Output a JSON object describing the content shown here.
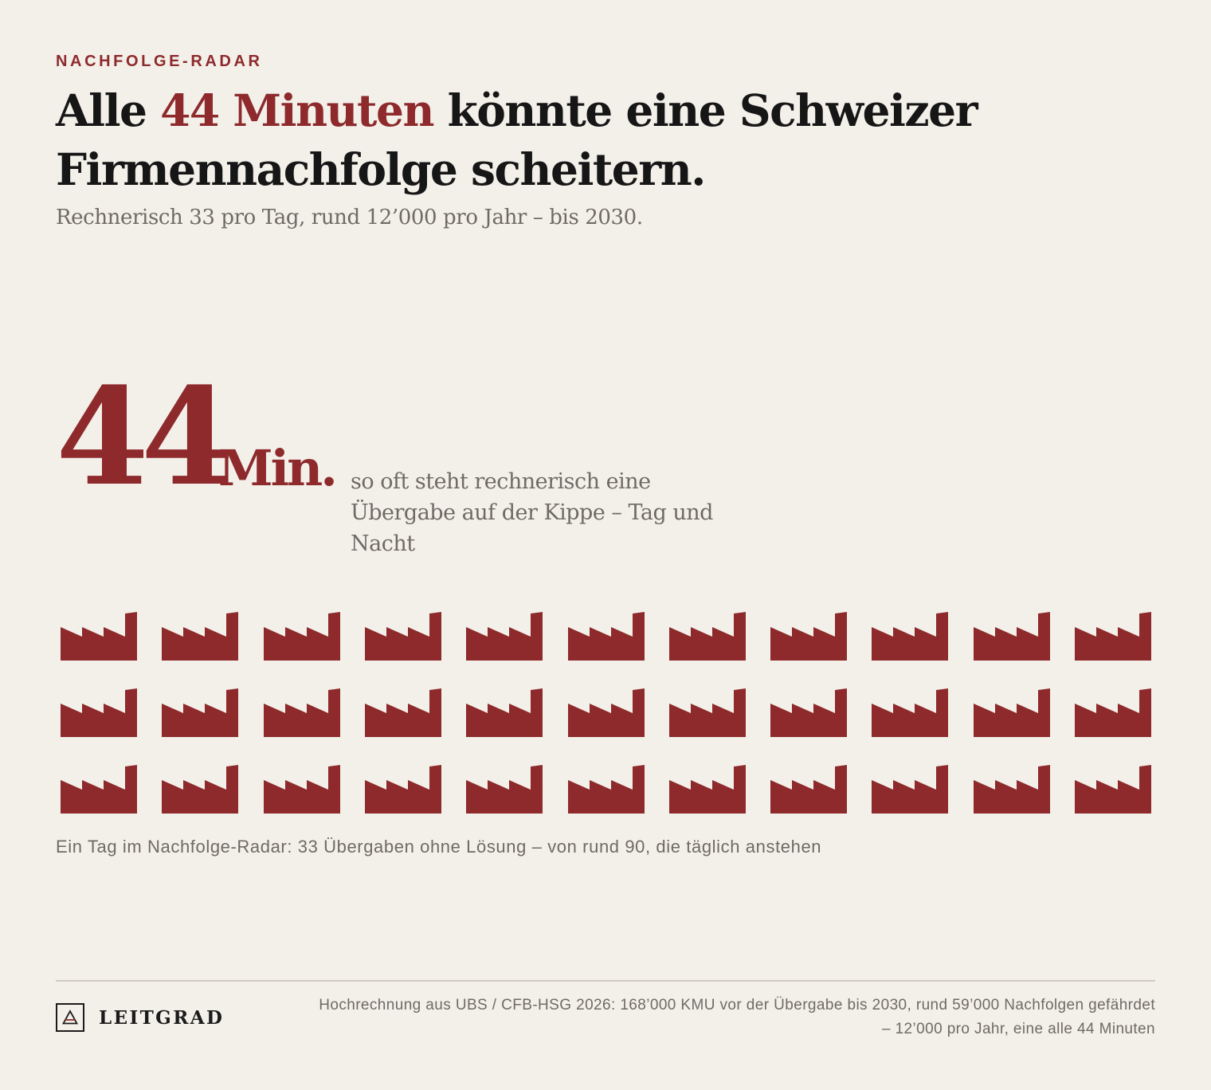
{
  "kicker": "NACHFOLGE-RADAR",
  "headline": {
    "before": "Alle ",
    "accent": "44 Minuten",
    "after": " könnte eine Schweizer Firmennachfolge scheitern."
  },
  "subline": "Rechnerisch 33 pro Tag, rund 12’000 pro Jahr – bis 2030.",
  "highlight": {
    "number": "44",
    "unit": "Min.",
    "description": "so oft steht rechnerisch eine Übergabe auf der Kippe – Tag und Nacht"
  },
  "icon_grid": {
    "icon": "factory-icon",
    "count": 33,
    "columns": 11,
    "rows": 3,
    "color": "#8e2a2c"
  },
  "grid_caption": "Ein Tag im Nachfolge-Radar: 33 Übergaben ohne Lösung – von rund 90, die täglich anstehen",
  "footer": {
    "logo_text": "LEITGRAD",
    "logo_icon": "triangle-logo-icon",
    "source": "Hochrechnung aus UBS / CFB-HSG 2026: 168’000 KMU vor der Übergabe bis 2030, rund 59’000 Nachfolgen gefährdet – 12’000 pro Jahr, eine alle 44 Minuten"
  },
  "colors": {
    "accent": "#8e2a2c",
    "background": "#f3f0ea",
    "text": "#161616",
    "muted": "#6f6a64"
  }
}
